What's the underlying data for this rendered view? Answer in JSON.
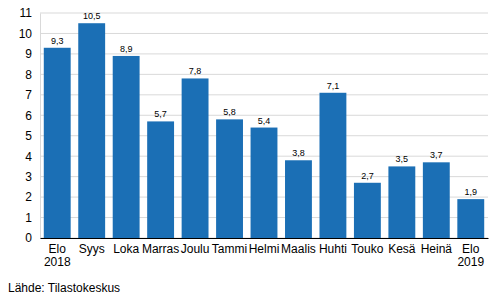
{
  "chart_data": {
    "type": "bar",
    "categories": [
      "Elo 2018",
      "Syys",
      "Loka",
      "Marras",
      "Joulu",
      "Tammi",
      "Helmi",
      "Maalis",
      "Huhti",
      "Touko",
      "Kesä",
      "Heinä",
      "Elo 2019"
    ],
    "values": [
      9.3,
      10.5,
      8.9,
      5.7,
      7.8,
      5.8,
      5.4,
      3.8,
      7.1,
      2.7,
      3.5,
      3.7,
      1.9
    ],
    "value_labels": [
      "9,3",
      "10,5",
      "8,9",
      "5,7",
      "7,8",
      "5,8",
      "5,4",
      "3,8",
      "7,1",
      "2,7",
      "3,5",
      "3,7",
      "1,9"
    ],
    "data_labels": true,
    "color": "#1b6fb5",
    "ylim": [
      0,
      11
    ],
    "yticks": [
      0,
      1,
      2,
      3,
      4,
      5,
      6,
      7,
      8,
      9,
      10,
      11
    ],
    "grid": true,
    "source": "Lähde: Tilastokeskus"
  }
}
